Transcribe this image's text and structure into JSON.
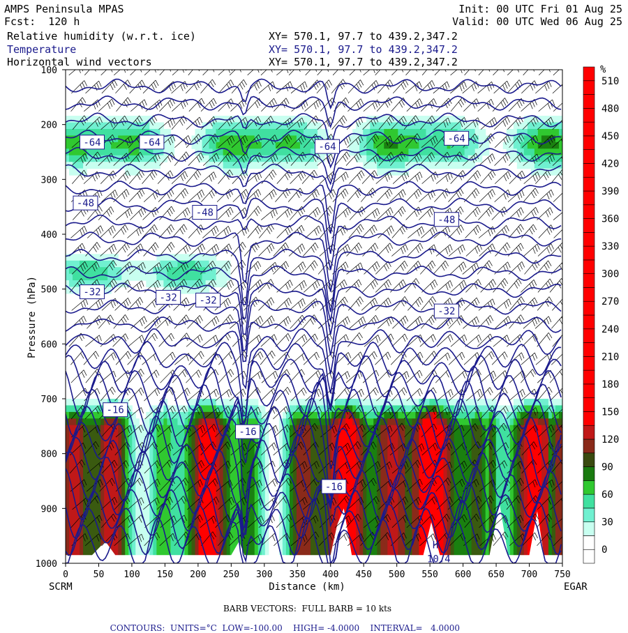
{
  "header": {
    "model": "AMPS Peninsula MPAS",
    "fcst": "Fcst:  120 h",
    "init": "Init: 00 UTC Fri 01 Aug 25",
    "valid": "Valid: 00 UTC Wed 06 Aug 25",
    "fields": [
      {
        "name": "Relative humidity (w.r.t. ice)",
        "xy": "XY= 570.1, 97.7 to 439.2,347.2"
      },
      {
        "name": "Temperature",
        "xy": "XY= 570.1, 97.7 to 439.2,347.2"
      },
      {
        "name": "Horizontal wind vectors",
        "xy": "XY= 570.1, 97.7 to 439.2,347.2"
      }
    ]
  },
  "colors": {
    "contour": "#1a1a8c",
    "rh_scale": [
      "#ffffff",
      "#ffffff",
      "#ffffff",
      "#c8ffee",
      "#40f0c0",
      "#40d080",
      "#30c030",
      "#1a6a00",
      "#8a2a1a",
      "#c01010",
      "#ff0000"
    ]
  },
  "chart_data": {
    "type": "heatmap",
    "title": "",
    "xlabel": "Distance (km)",
    "ylabel": "Pressure (hPa)",
    "xlim": [
      0,
      750
    ],
    "ylim": [
      1000,
      100
    ],
    "x_ticks": [
      0,
      50,
      100,
      150,
      200,
      250,
      300,
      350,
      400,
      450,
      500,
      550,
      600,
      650,
      700,
      750
    ],
    "y_ticks": [
      100,
      200,
      300,
      400,
      500,
      600,
      700,
      800,
      900,
      1000
    ],
    "x_end_labels": {
      "left": "SCRM",
      "right": "EGAR"
    },
    "colorbar": {
      "unit": "%",
      "ticks": [
        0,
        30,
        60,
        90,
        120,
        150,
        180,
        210,
        240,
        270,
        300,
        330,
        360,
        390,
        420,
        450,
        480,
        510
      ]
    },
    "temperature_contours": {
      "units": "°C",
      "labels": [
        {
          "x": 40,
          "p": 232,
          "value": "-64"
        },
        {
          "x": 130,
          "p": 232,
          "value": "-64"
        },
        {
          "x": 395,
          "p": 240,
          "value": "-64"
        },
        {
          "x": 590,
          "p": 225,
          "value": "-64"
        },
        {
          "x": 30,
          "p": 343,
          "value": "-48"
        },
        {
          "x": 210,
          "p": 360,
          "value": "-48"
        },
        {
          "x": 575,
          "p": 373,
          "value": "-48"
        },
        {
          "x": 40,
          "p": 505,
          "value": "-32"
        },
        {
          "x": 155,
          "p": 515,
          "value": "-32"
        },
        {
          "x": 215,
          "p": 520,
          "value": "-32"
        },
        {
          "x": 575,
          "p": 540,
          "value": "-32"
        },
        {
          "x": 75,
          "p": 720,
          "value": "-16"
        },
        {
          "x": 275,
          "p": 760,
          "value": "-16"
        },
        {
          "x": 405,
          "p": 860,
          "value": "-16"
        }
      ],
      "high_label": {
        "x": 535,
        "p": 980,
        "symbol": "H",
        "value": "10.4"
      },
      "low": "-100.00",
      "high": "-4.0000",
      "interval": "4.0000"
    },
    "barb_note": "BARB VECTORS:  FULL BARB = 10 kts",
    "contour_note": {
      "prefix": "CONTOURS:  UNITS=°C  LOW=",
      "low": "-100.00",
      "high_prefix": "HIGH=",
      "high": "-4.0000",
      "interval_prefix": "INTERVAL=",
      "interval": "4.0000"
    }
  }
}
